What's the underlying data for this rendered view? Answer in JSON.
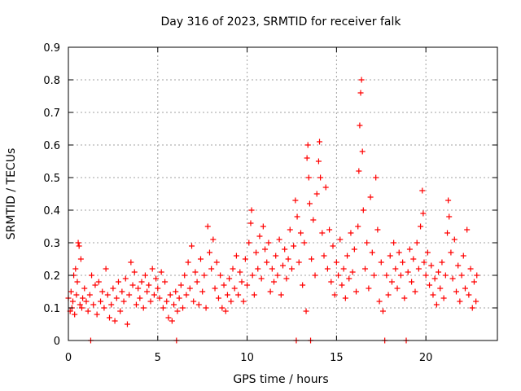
{
  "chart_data": {
    "type": "scatter",
    "title": "Day 316 of 2023, SRMTID for receiver falk",
    "xlabel": "GPS time / hours",
    "ylabel": "SRMTID / TECUs",
    "xlim": [
      0,
      24
    ],
    "ylim": [
      0,
      0.9
    ],
    "xticks": [
      0,
      5,
      10,
      15,
      20
    ],
    "xtick_labels": [
      "0",
      "5",
      "10",
      "15",
      "20"
    ],
    "yticks": [
      0,
      0.1,
      0.2,
      0.3,
      0.4,
      0.5,
      0.6,
      0.7,
      0.8,
      0.9
    ],
    "ytick_labels": [
      "0",
      "0.1",
      "0.2",
      "0.3",
      "0.4",
      "0.5",
      "0.6",
      "0.7",
      "0.8",
      "0.9"
    ],
    "grid": true,
    "marker": "+",
    "color": "#ff0000",
    "series": [
      {
        "name": "SRMTID",
        "points": [
          [
            0.0,
            0.13
          ],
          [
            0.1,
            0.09
          ],
          [
            0.15,
            0.15
          ],
          [
            0.2,
            0.1
          ],
          [
            0.25,
            0.12
          ],
          [
            0.3,
            0.2
          ],
          [
            0.35,
            0.08
          ],
          [
            0.4,
            0.22
          ],
          [
            0.45,
            0.14
          ],
          [
            0.5,
            0.18
          ],
          [
            0.55,
            0.3
          ],
          [
            0.6,
            0.29
          ],
          [
            0.65,
            0.11
          ],
          [
            0.7,
            0.25
          ],
          [
            0.75,
            0.1
          ],
          [
            0.8,
            0.13
          ],
          [
            0.9,
            0.16
          ],
          [
            1.0,
            0.12
          ],
          [
            1.1,
            0.09
          ],
          [
            1.2,
            0.14
          ],
          [
            1.25,
            0.0
          ],
          [
            1.3,
            0.2
          ],
          [
            1.4,
            0.11
          ],
          [
            1.5,
            0.17
          ],
          [
            1.6,
            0.08
          ],
          [
            1.7,
            0.18
          ],
          [
            1.8,
            0.12
          ],
          [
            1.9,
            0.15
          ],
          [
            2.0,
            0.1
          ],
          [
            2.1,
            0.22
          ],
          [
            2.2,
            0.14
          ],
          [
            2.3,
            0.07
          ],
          [
            2.4,
            0.11
          ],
          [
            2.5,
            0.16
          ],
          [
            2.6,
            0.06
          ],
          [
            2.7,
            0.13
          ],
          [
            2.8,
            0.18
          ],
          [
            2.9,
            0.09
          ],
          [
            3.0,
            0.15
          ],
          [
            3.1,
            0.12
          ],
          [
            3.2,
            0.19
          ],
          [
            3.3,
            0.05
          ],
          [
            3.4,
            0.14
          ],
          [
            3.5,
            0.24
          ],
          [
            3.6,
            0.17
          ],
          [
            3.7,
            0.21
          ],
          [
            3.8,
            0.11
          ],
          [
            3.9,
            0.16
          ],
          [
            4.0,
            0.13
          ],
          [
            4.1,
            0.18
          ],
          [
            4.2,
            0.1
          ],
          [
            4.3,
            0.2
          ],
          [
            4.4,
            0.15
          ],
          [
            4.5,
            0.17
          ],
          [
            4.6,
            0.12
          ],
          [
            4.7,
            0.22
          ],
          [
            4.8,
            0.14
          ],
          [
            4.9,
            0.19
          ],
          [
            5.0,
            0.16
          ],
          [
            5.1,
            0.13
          ],
          [
            5.2,
            0.21
          ],
          [
            5.3,
            0.1
          ],
          [
            5.4,
            0.18
          ],
          [
            5.5,
            0.12
          ],
          [
            5.6,
            0.07
          ],
          [
            5.7,
            0.14
          ],
          [
            5.8,
            0.06
          ],
          [
            5.9,
            0.11
          ],
          [
            6.0,
            0.15
          ],
          [
            6.05,
            0.0
          ],
          [
            6.1,
            0.09
          ],
          [
            6.2,
            0.13
          ],
          [
            6.3,
            0.17
          ],
          [
            6.4,
            0.1
          ],
          [
            6.5,
            0.2
          ],
          [
            6.6,
            0.14
          ],
          [
            6.7,
            0.24
          ],
          [
            6.8,
            0.16
          ],
          [
            6.9,
            0.29
          ],
          [
            7.0,
            0.12
          ],
          [
            7.1,
            0.21
          ],
          [
            7.2,
            0.18
          ],
          [
            7.3,
            0.11
          ],
          [
            7.4,
            0.25
          ],
          [
            7.5,
            0.15
          ],
          [
            7.6,
            0.2
          ],
          [
            7.7,
            0.1
          ],
          [
            7.8,
            0.35
          ],
          [
            7.9,
            0.27
          ],
          [
            8.0,
            0.22
          ],
          [
            8.1,
            0.31
          ],
          [
            8.2,
            0.16
          ],
          [
            8.3,
            0.24
          ],
          [
            8.4,
            0.13
          ],
          [
            8.5,
            0.2
          ],
          [
            8.6,
            0.1
          ],
          [
            8.7,
            0.17
          ],
          [
            8.8,
            0.09
          ],
          [
            8.9,
            0.14
          ],
          [
            9.0,
            0.19
          ],
          [
            9.1,
            0.12
          ],
          [
            9.2,
            0.22
          ],
          [
            9.3,
            0.16
          ],
          [
            9.4,
            0.26
          ],
          [
            9.5,
            0.14
          ],
          [
            9.6,
            0.21
          ],
          [
            9.7,
            0.18
          ],
          [
            9.8,
            0.12
          ],
          [
            9.9,
            0.25
          ],
          [
            10.0,
            0.17
          ],
          [
            10.1,
            0.3
          ],
          [
            10.2,
            0.36
          ],
          [
            10.25,
            0.4
          ],
          [
            10.3,
            0.2
          ],
          [
            10.4,
            0.14
          ],
          [
            10.5,
            0.27
          ],
          [
            10.6,
            0.22
          ],
          [
            10.7,
            0.32
          ],
          [
            10.8,
            0.19
          ],
          [
            10.9,
            0.35
          ],
          [
            11.0,
            0.28
          ],
          [
            11.1,
            0.24
          ],
          [
            11.2,
            0.3
          ],
          [
            11.3,
            0.15
          ],
          [
            11.4,
            0.22
          ],
          [
            11.5,
            0.18
          ],
          [
            11.6,
            0.26
          ],
          [
            11.7,
            0.2
          ],
          [
            11.8,
            0.31
          ],
          [
            11.9,
            0.14
          ],
          [
            12.0,
            0.23
          ],
          [
            12.1,
            0.28
          ],
          [
            12.2,
            0.19
          ],
          [
            12.3,
            0.25
          ],
          [
            12.4,
            0.34
          ],
          [
            12.5,
            0.22
          ],
          [
            12.6,
            0.29
          ],
          [
            12.7,
            0.43
          ],
          [
            12.75,
            0.0
          ],
          [
            12.8,
            0.38
          ],
          [
            12.9,
            0.24
          ],
          [
            13.0,
            0.33
          ],
          [
            13.1,
            0.17
          ],
          [
            13.2,
            0.3
          ],
          [
            13.3,
            0.09
          ],
          [
            13.35,
            0.56
          ],
          [
            13.4,
            0.6
          ],
          [
            13.45,
            0.5
          ],
          [
            13.5,
            0.42
          ],
          [
            13.55,
            0.0
          ],
          [
            13.6,
            0.25
          ],
          [
            13.7,
            0.37
          ],
          [
            13.8,
            0.2
          ],
          [
            13.9,
            0.45
          ],
          [
            14.0,
            0.55
          ],
          [
            14.05,
            0.61
          ],
          [
            14.1,
            0.5
          ],
          [
            14.2,
            0.33
          ],
          [
            14.3,
            0.26
          ],
          [
            14.4,
            0.47
          ],
          [
            14.5,
            0.22
          ],
          [
            14.6,
            0.34
          ],
          [
            14.7,
            0.18
          ],
          [
            14.8,
            0.29
          ],
          [
            14.9,
            0.14
          ],
          [
            15.0,
            0.24
          ],
          [
            15.1,
            0.2
          ],
          [
            15.2,
            0.31
          ],
          [
            15.3,
            0.17
          ],
          [
            15.4,
            0.22
          ],
          [
            15.5,
            0.13
          ],
          [
            15.6,
            0.26
          ],
          [
            15.7,
            0.19
          ],
          [
            15.8,
            0.33
          ],
          [
            15.9,
            0.21
          ],
          [
            16.0,
            0.28
          ],
          [
            16.1,
            0.15
          ],
          [
            16.2,
            0.35
          ],
          [
            16.25,
            0.52
          ],
          [
            16.3,
            0.66
          ],
          [
            16.35,
            0.76
          ],
          [
            16.4,
            0.8
          ],
          [
            16.45,
            0.58
          ],
          [
            16.5,
            0.4
          ],
          [
            16.6,
            0.22
          ],
          [
            16.7,
            0.3
          ],
          [
            16.8,
            0.16
          ],
          [
            16.9,
            0.44
          ],
          [
            17.0,
            0.27
          ],
          [
            17.1,
            0.2
          ],
          [
            17.2,
            0.5
          ],
          [
            17.3,
            0.34
          ],
          [
            17.4,
            0.12
          ],
          [
            17.5,
            0.24
          ],
          [
            17.6,
            0.09
          ],
          [
            17.7,
            0.0
          ],
          [
            17.8,
            0.2
          ],
          [
            17.9,
            0.14
          ],
          [
            18.0,
            0.26
          ],
          [
            18.1,
            0.18
          ],
          [
            18.2,
            0.3
          ],
          [
            18.3,
            0.22
          ],
          [
            18.4,
            0.16
          ],
          [
            18.5,
            0.27
          ],
          [
            18.6,
            0.2
          ],
          [
            18.7,
            0.24
          ],
          [
            18.8,
            0.13
          ],
          [
            18.9,
            0.0
          ],
          [
            19.0,
            0.21
          ],
          [
            19.1,
            0.28
          ],
          [
            19.2,
            0.18
          ],
          [
            19.3,
            0.25
          ],
          [
            19.4,
            0.15
          ],
          [
            19.5,
            0.3
          ],
          [
            19.6,
            0.22
          ],
          [
            19.7,
            0.35
          ],
          [
            19.8,
            0.46
          ],
          [
            19.85,
            0.39
          ],
          [
            19.9,
            0.24
          ],
          [
            20.0,
            0.2
          ],
          [
            20.1,
            0.27
          ],
          [
            20.2,
            0.17
          ],
          [
            20.3,
            0.23
          ],
          [
            20.4,
            0.14
          ],
          [
            20.5,
            0.19
          ],
          [
            20.6,
            0.11
          ],
          [
            20.7,
            0.21
          ],
          [
            20.8,
            0.16
          ],
          [
            20.9,
            0.24
          ],
          [
            21.0,
            0.13
          ],
          [
            21.1,
            0.2
          ],
          [
            21.2,
            0.33
          ],
          [
            21.25,
            0.43
          ],
          [
            21.3,
            0.38
          ],
          [
            21.4,
            0.27
          ],
          [
            21.5,
            0.19
          ],
          [
            21.6,
            0.31
          ],
          [
            21.7,
            0.15
          ],
          [
            21.8,
            0.23
          ],
          [
            21.9,
            0.12
          ],
          [
            22.0,
            0.2
          ],
          [
            22.1,
            0.26
          ],
          [
            22.2,
            0.16
          ],
          [
            22.3,
            0.34
          ],
          [
            22.4,
            0.14
          ],
          [
            22.5,
            0.22
          ],
          [
            22.6,
            0.1
          ],
          [
            22.7,
            0.18
          ],
          [
            22.8,
            0.12
          ],
          [
            22.85,
            0.2
          ]
        ]
      }
    ]
  }
}
